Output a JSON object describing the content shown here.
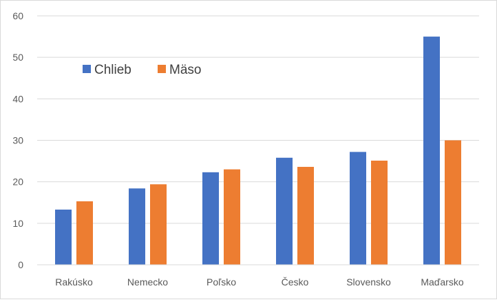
{
  "chart_data": {
    "type": "bar",
    "categories": [
      "Rakúsko",
      "Nemecko",
      "Poľsko",
      "Česko",
      "Slovensko",
      "Maďarsko"
    ],
    "series": [
      {
        "name": "Chlieb",
        "values": [
          13.3,
          18.4,
          22.3,
          25.8,
          27.2,
          55.0
        ],
        "color": "#4472C4"
      },
      {
        "name": "Mäso",
        "values": [
          15.3,
          19.4,
          23.0,
          23.6,
          25.1,
          30.0
        ],
        "color": "#ED7D31"
      }
    ],
    "ylim": [
      0,
      60
    ],
    "yticks": [
      0,
      10,
      20,
      30,
      40,
      50,
      60
    ],
    "grid": true,
    "legend_position": "top-left",
    "title": "",
    "xlabel": "",
    "ylabel": ""
  }
}
